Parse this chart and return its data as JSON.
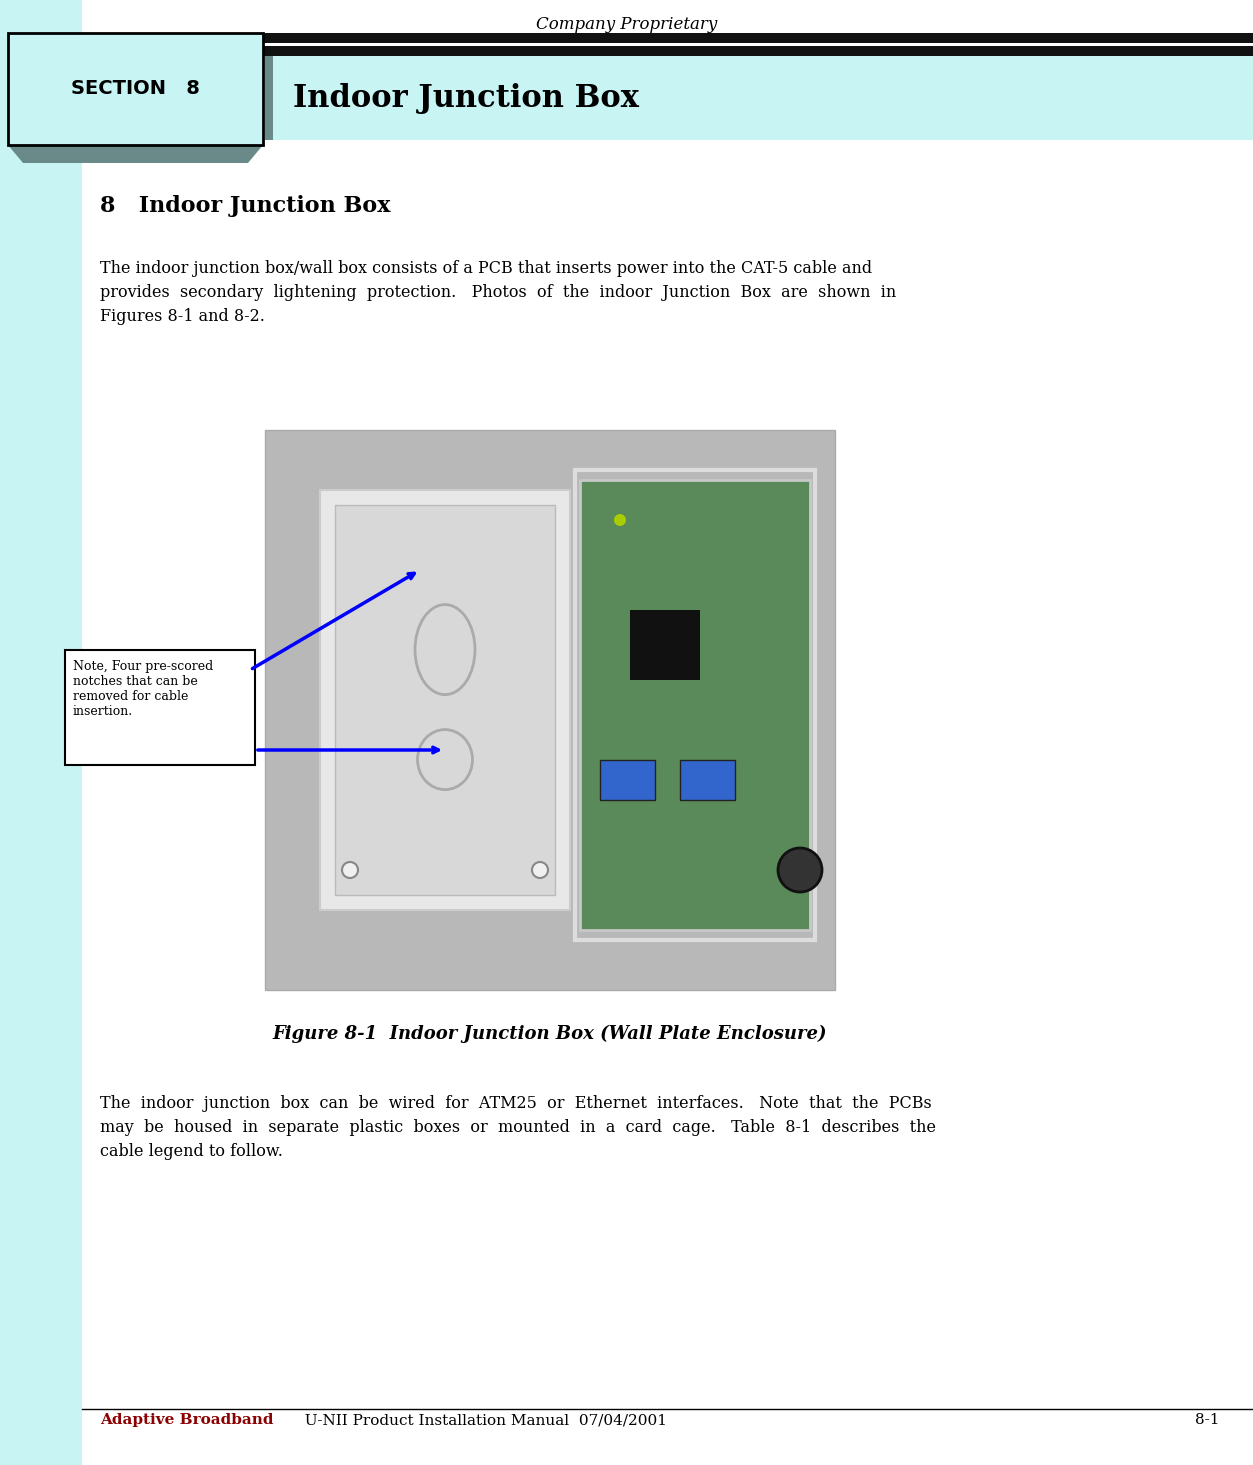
{
  "page_width": 12.53,
  "page_height": 14.65,
  "bg_color": "#ffffff",
  "left_bar_color": "#c8f4f4",
  "header_bar_color": "#c8f4f4",
  "header_black_bar_color": "#111111",
  "header_title": "Company Proprietary",
  "section_label": "SECTION   8",
  "section_title": "Indoor Junction Box",
  "section_box_color": "#c8f4f4",
  "section_box_border": "#000000",
  "heading": "8   Indoor Junction Box",
  "footer_brand": "Adaptive Broadband",
  "footer_brand_color": "#8b0000",
  "footer_rest": "  U-NII Product Installation Manual  07/04/2001",
  "footer_page": "8-1",
  "figure_caption": "Figure 8-1  Indoor Junction Box (Wall Plate Enclosure)",
  "note_text": "Note, Four pre-scored\nnotches that can be\nremoved for cable\ninsertion.",
  "para1_line1": "The indoor junction box/wall box consists of a PCB that inserts power into the CAT-5 cable and",
  "para1_line2": "provides  secondary  lightening  protection.   Photos  of  the  indoor  Junction  Box  are  shown  in",
  "para1_line3": "Figures 8-1 and 8-2.",
  "para2_line1": "The  indoor  junction  box  can  be  wired  for  ATM25  or  Ethernet  interfaces.   Note  that  the  PCBs",
  "para2_line2": "may  be  housed  in  separate  plastic  boxes  or  mounted  in  a  card  cage.   Table  8-1  describes  the",
  "para2_line3": "cable legend to follow."
}
